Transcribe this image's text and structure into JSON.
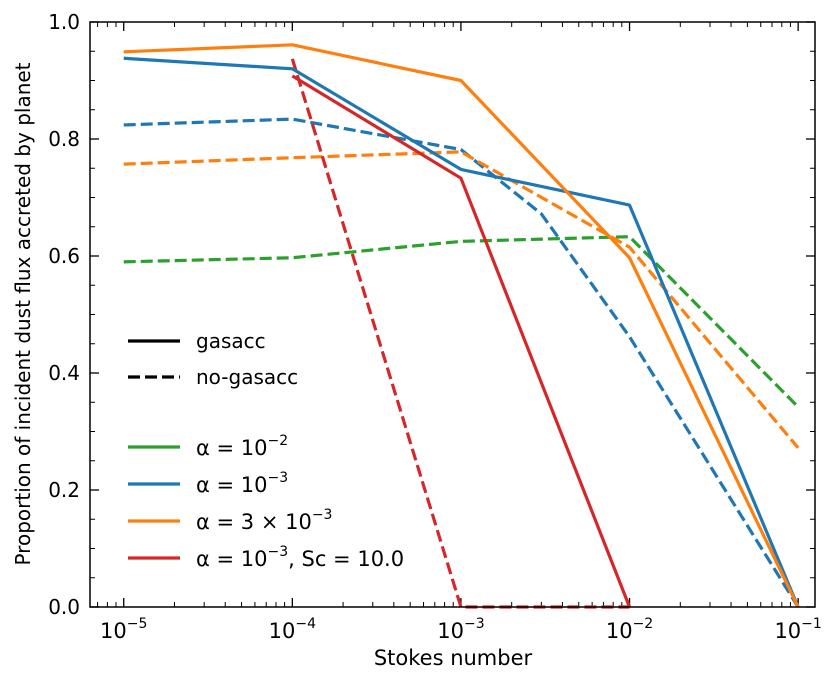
{
  "chart_data": {
    "type": "line",
    "title": "",
    "xlabel": "Stokes number",
    "ylabel": "Proportion of incident dust flux accreted by planet",
    "xscale": "log",
    "xlim_exp": [
      -5.2,
      -0.9
    ],
    "ylim": [
      0,
      1.0
    ],
    "x_ticks": [
      {
        "exp": -5,
        "base": "10",
        "sup": "−5"
      },
      {
        "exp": -4,
        "base": "10",
        "sup": "−4"
      },
      {
        "exp": -3,
        "base": "10",
        "sup": "−3"
      },
      {
        "exp": -2,
        "base": "10",
        "sup": "−2"
      },
      {
        "exp": -1,
        "base": "10",
        "sup": "−1"
      }
    ],
    "y_ticks": [
      {
        "value": 0.0,
        "label": "0.0"
      },
      {
        "value": 0.2,
        "label": "0.2"
      },
      {
        "value": 0.4,
        "label": "0.4"
      },
      {
        "value": 0.6,
        "label": "0.6"
      },
      {
        "value": 0.8,
        "label": "0.8"
      },
      {
        "value": 1.0,
        "label": "1.0"
      }
    ],
    "style_legend": [
      {
        "label": "gasacc",
        "dash": "solid"
      },
      {
        "label": "no-gasacc",
        "dash": "dashed"
      }
    ],
    "series_legend": [
      {
        "label": "α = 10",
        "sup": "−2",
        "suffix": "",
        "color": "#2ca02c"
      },
      {
        "label": "α = 10",
        "sup": "−3",
        "suffix": "",
        "color": "#1f77b4"
      },
      {
        "label": "α = 3 × 10",
        "sup": "−3",
        "suffix": "",
        "color": "#ff7f0e"
      },
      {
        "label": "α = 10",
        "sup": "−3",
        "suffix": ", Sc = 10.0",
        "color": "#d62728"
      }
    ],
    "series": [
      {
        "name": "alpha-1e-2-no-gasacc",
        "color": "#2ca02c",
        "dash": "dashed",
        "x": [
          1e-05,
          0.0001,
          0.001,
          0.01,
          0.1
        ],
        "y": [
          0.59,
          0.597,
          0.625,
          0.633,
          0.342
        ]
      },
      {
        "name": "alpha-1e-3-no-gasacc",
        "color": "#1f77b4",
        "dash": "dashed",
        "x": [
          1e-05,
          0.0001,
          0.001,
          0.003,
          0.01,
          0.1
        ],
        "y": [
          0.824,
          0.834,
          0.782,
          0.672,
          0.462,
          0.0
        ]
      },
      {
        "name": "alpha-3e-3-no-gasacc",
        "color": "#ff7f0e",
        "dash": "dashed",
        "x": [
          1e-05,
          0.0001,
          0.001,
          0.01,
          0.1
        ],
        "y": [
          0.757,
          0.768,
          0.778,
          0.615,
          0.272
        ]
      },
      {
        "name": "alpha-1e-3-sc10-no-gasacc",
        "color": "#d62728",
        "dash": "dashed",
        "x": [
          0.0001,
          0.001,
          0.01
        ],
        "y": [
          0.937,
          0.0,
          0.0
        ]
      },
      {
        "name": "alpha-1e-3-gasacc",
        "color": "#1f77b4",
        "dash": "solid",
        "x": [
          1e-05,
          0.0001,
          0.001,
          0.01,
          0.1
        ],
        "y": [
          0.938,
          0.92,
          0.748,
          0.687,
          0.0
        ]
      },
      {
        "name": "alpha-3e-3-gasacc",
        "color": "#ff7f0e",
        "dash": "solid",
        "x": [
          1e-05,
          0.0001,
          0.001,
          0.01,
          0.1
        ],
        "y": [
          0.949,
          0.961,
          0.9,
          0.597,
          0.0
        ]
      },
      {
        "name": "alpha-1e-3-sc10-gasacc",
        "color": "#d62728",
        "dash": "solid",
        "x": [
          0.0001,
          0.001,
          0.01
        ],
        "y": [
          0.908,
          0.733,
          0.0
        ]
      }
    ]
  }
}
